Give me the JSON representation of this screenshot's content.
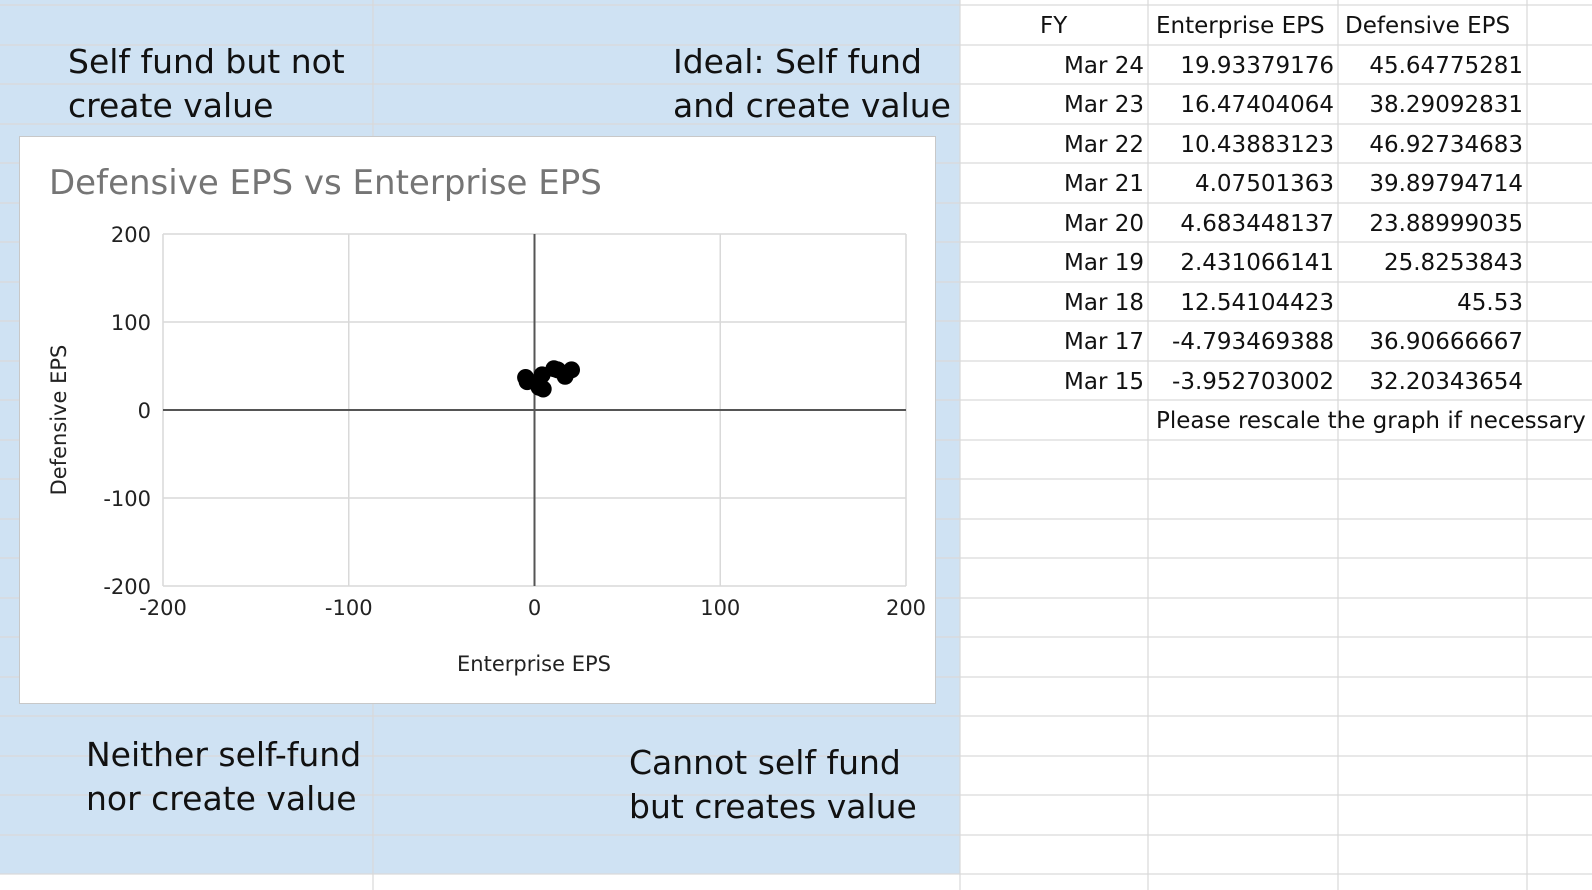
{
  "quadrants": {
    "top_left": {
      "line1": "Self fund but not",
      "line2": "create value"
    },
    "top_right": {
      "line1": "Ideal: Self fund",
      "line2": "and create value"
    },
    "bottom_left": {
      "line1": "Neither self-fund",
      "line2": "nor create value"
    },
    "bottom_right": {
      "line1": "Cannot self fund",
      "line2": "but creates value"
    }
  },
  "colors": {
    "quadrant_fill": "#cfe2f3",
    "gridline": "#d9d9d9",
    "chart_gridline": "#d9d9d9",
    "axis_line": "#555555",
    "marker": "#000000",
    "title_color": "#757575"
  },
  "table": {
    "headers": {
      "fy": "FY",
      "enterprise": "Enterprise EPS",
      "defensive": "Defensive EPS"
    },
    "rows": [
      {
        "fy": "Mar 24",
        "enterprise": "19.93379176",
        "defensive": "45.64775281"
      },
      {
        "fy": "Mar 23",
        "enterprise": "16.47404064",
        "defensive": "38.29092831"
      },
      {
        "fy": "Mar 22",
        "enterprise": "10.43883123",
        "defensive": "46.92734683"
      },
      {
        "fy": "Mar 21",
        "enterprise": "4.07501363",
        "defensive": "39.89794714"
      },
      {
        "fy": "Mar 20",
        "enterprise": "4.683448137",
        "defensive": "23.88999035"
      },
      {
        "fy": "Mar 19",
        "enterprise": "2.431066141",
        "defensive": "25.8253843"
      },
      {
        "fy": "Mar 18",
        "enterprise": "12.54104423",
        "defensive": "45.53"
      },
      {
        "fy": "Mar 17",
        "enterprise": "-4.793469388",
        "defensive": "36.90666667"
      },
      {
        "fy": "Mar 15",
        "enterprise": "-3.952703002",
        "defensive": "32.20343654"
      }
    ],
    "note": "Please rescale the graph if necessary"
  },
  "chart_data": {
    "type": "scatter",
    "title": "Defensive EPS vs Enterprise EPS",
    "xlabel": "Enterprise EPS",
    "ylabel": "Defensive EPS",
    "xlim": [
      -200,
      200
    ],
    "ylim": [
      -200,
      200
    ],
    "xticks": [
      "-200",
      "-100",
      "0",
      "100",
      "200"
    ],
    "yticks": [
      "200",
      "100",
      "0",
      "-100",
      "-200"
    ],
    "grid": true,
    "legend": "none",
    "points": [
      {
        "x": 19.93379176,
        "y": 45.64775281
      },
      {
        "x": 16.47404064,
        "y": 38.29092831
      },
      {
        "x": 10.43883123,
        "y": 46.92734683
      },
      {
        "x": 4.07501363,
        "y": 39.89794714
      },
      {
        "x": 4.683448137,
        "y": 23.88999035
      },
      {
        "x": 2.431066141,
        "y": 25.8253843
      },
      {
        "x": 12.54104423,
        "y": 45.53
      },
      {
        "x": -4.793469388,
        "y": 36.90666667
      },
      {
        "x": -3.952703002,
        "y": 32.20343654
      }
    ]
  }
}
